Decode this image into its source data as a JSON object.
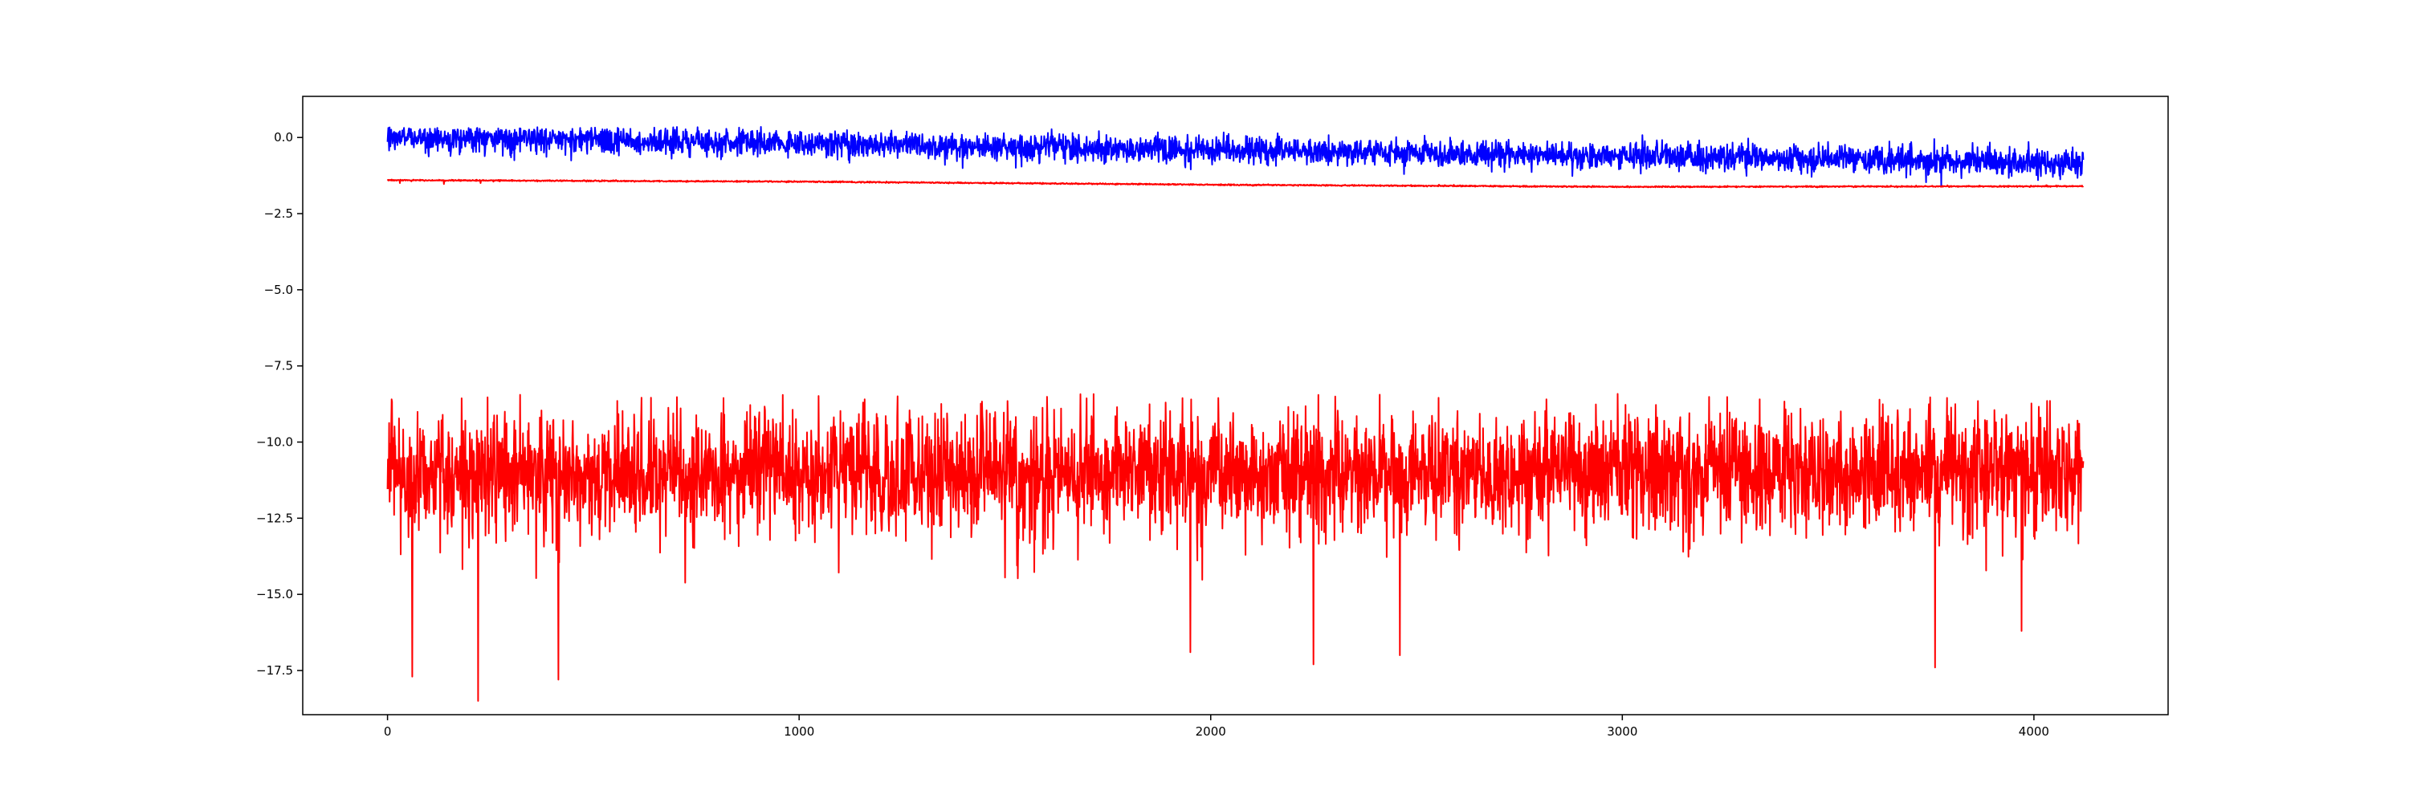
{
  "chart_data": {
    "type": "line",
    "title": "",
    "xlabel": "",
    "ylabel": "",
    "xlim": [
      -206,
      4326
    ],
    "ylim": [
      -18.95,
      1.35
    ],
    "grid": false,
    "legend": "none",
    "x_ticks": [
      {
        "value": 0,
        "label": "0"
      },
      {
        "value": 1000,
        "label": "1000"
      },
      {
        "value": 2000,
        "label": "2000"
      },
      {
        "value": 3000,
        "label": "3000"
      },
      {
        "value": 4000,
        "label": "4000"
      }
    ],
    "y_ticks": [
      {
        "value": 0.0,
        "label": "0.0"
      },
      {
        "value": -2.5,
        "label": "−2.5"
      },
      {
        "value": -5.0,
        "label": "−5.0"
      },
      {
        "value": -7.5,
        "label": "−7.5"
      },
      {
        "value": -10.0,
        "label": "−10.0"
      },
      {
        "value": -12.5,
        "label": "−12.5"
      },
      {
        "value": -15.0,
        "label": "−15.0"
      },
      {
        "value": -17.5,
        "label": "−17.5"
      }
    ],
    "series": [
      {
        "color": "#0000ff",
        "n_points": 4120,
        "x_range": [
          0,
          4120
        ],
        "trend": [
          [
            0,
            0.0
          ],
          [
            1000,
            -0.18
          ],
          [
            2000,
            -0.4
          ],
          [
            3000,
            -0.6
          ],
          [
            4120,
            -0.85
          ]
        ],
        "noise_std": 0.22,
        "min": -1.7,
        "max": 0.35
      },
      {
        "color": "#ff0000",
        "n_points": 4120,
        "x_range": [
          0,
          4120
        ],
        "trend": [
          [
            0,
            -1.4
          ],
          [
            1000,
            -1.45
          ],
          [
            2000,
            -1.55
          ],
          [
            3000,
            -1.62
          ],
          [
            4120,
            -1.6
          ]
        ],
        "noise_std": 0.01,
        "min": -1.65,
        "max": -1.38
      },
      {
        "color": "#ff0000",
        "n_points": 4120,
        "x_range": [
          0,
          4120
        ],
        "trend": [
          [
            0,
            -11.0
          ],
          [
            4120,
            -11.0
          ]
        ],
        "noise_std": 1.0,
        "min": -18.5,
        "max": -8.4,
        "notable_points": [
          [
            60,
            -17.7
          ],
          [
            220,
            -18.5
          ],
          [
            415,
            -17.8
          ],
          [
            1950,
            -16.9
          ],
          [
            2250,
            -17.3
          ],
          [
            2460,
            -17.0
          ],
          [
            3760,
            -17.4
          ],
          [
            3970,
            -16.2
          ]
        ]
      }
    ]
  }
}
